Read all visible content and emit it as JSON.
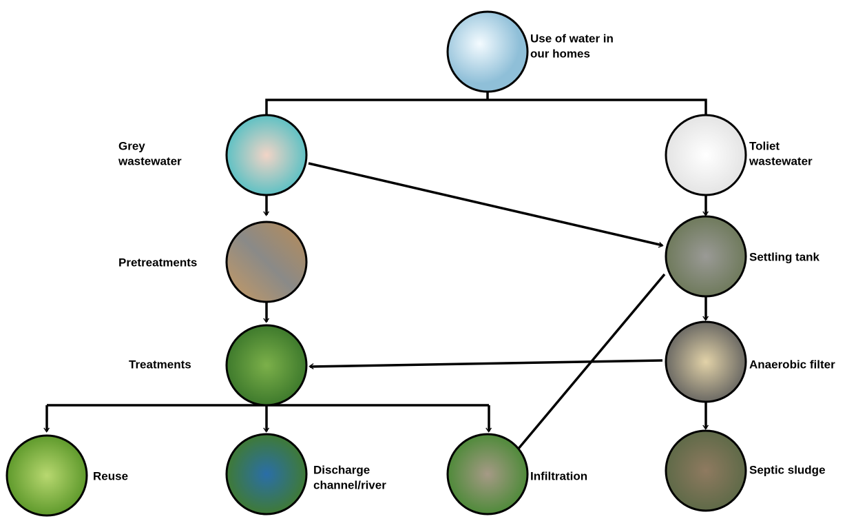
{
  "nodes": [
    {
      "label": [
        "Use of water in",
        "our homes"
      ]
    },
    {
      "label": [
        "Grey",
        "wastewater"
      ]
    },
    {
      "label": [
        "Toliet",
        "wastewater"
      ]
    },
    {
      "label": [
        "Pretreatments"
      ]
    },
    {
      "label": [
        "Settling tank"
      ]
    },
    {
      "label": [
        "Treatments"
      ]
    },
    {
      "label": [
        "Anaerobic filter"
      ]
    },
    {
      "label": [
        "Reuse"
      ]
    },
    {
      "label": [
        "Discharge",
        "channel/river"
      ]
    },
    {
      "label": [
        "Infiltration"
      ]
    },
    {
      "label": [
        "Septic sludge"
      ]
    }
  ]
}
